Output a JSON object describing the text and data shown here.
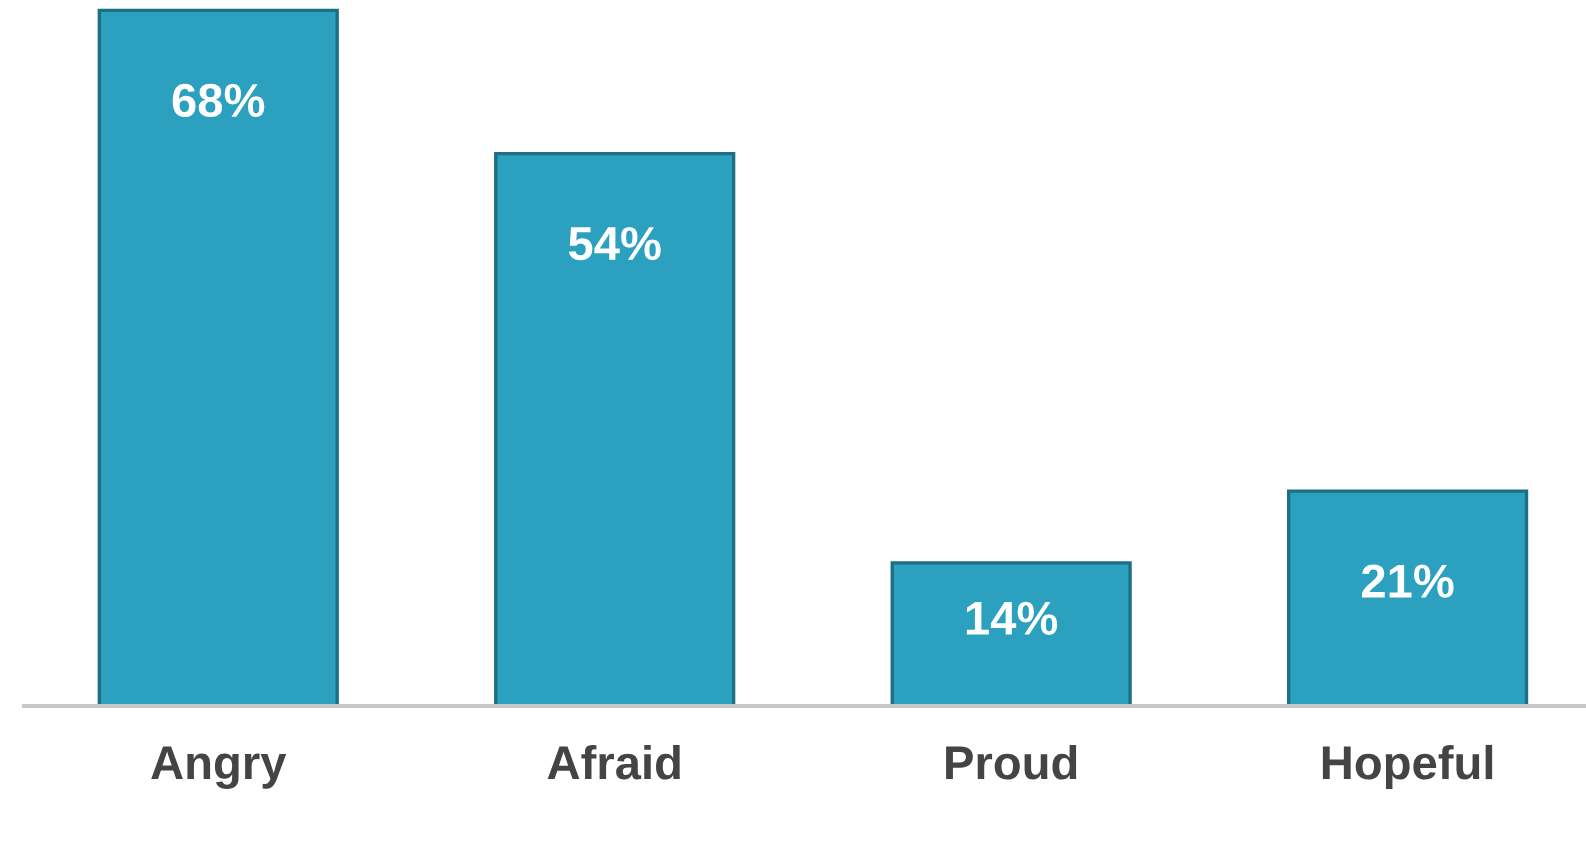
{
  "chart_data": {
    "type": "bar",
    "categories": [
      "Angry",
      "Afraid",
      "Proud",
      "Hopeful"
    ],
    "values": [
      68,
      54,
      14,
      21
    ],
    "value_labels": [
      "68%",
      "54%",
      "14%",
      "21%"
    ],
    "color": "#2ca1bf",
    "tick_labels": "x",
    "grid": false,
    "legend": false
  }
}
